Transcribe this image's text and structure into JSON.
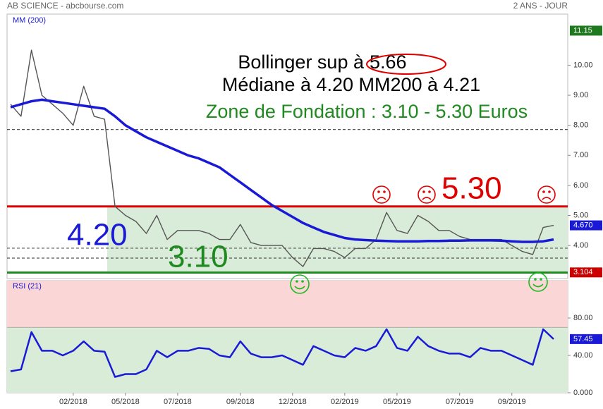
{
  "header": {
    "left": "AB SCIENCE - abcbourse.com",
    "right": "2 ANS - JOUR"
  },
  "chart_data": [
    {
      "type": "line",
      "series": [
        {
          "color": "#555555",
          "values": [
            8.7,
            8.3,
            10.5,
            9.0,
            8.7,
            8.4,
            8.0,
            9.3,
            8.3,
            8.2,
            5.3,
            5.0,
            4.8,
            4.4,
            5.0,
            4.2,
            4.5,
            4.5,
            4.5,
            4.4,
            4.2,
            4.2,
            4.7,
            4.1,
            4.0,
            4.0,
            4.0,
            3.6,
            3.3,
            3.9,
            3.9,
            3.8,
            3.6,
            3.9,
            3.9,
            4.2,
            5.1,
            4.5,
            4.4,
            5.0,
            4.8,
            4.5,
            4.5,
            4.3,
            4.2,
            4.2,
            4.2,
            4.2,
            4.0,
            3.8,
            3.7,
            4.6,
            4.67
          ]
        },
        {
          "name": "MM (200)",
          "color": "#1a1ad6",
          "values": [
            8.6,
            8.7,
            8.8,
            8.85,
            8.8,
            8.75,
            8.7,
            8.65,
            8.6,
            8.55,
            8.3,
            8.0,
            7.8,
            7.6,
            7.45,
            7.3,
            7.15,
            7.0,
            6.9,
            6.75,
            6.6,
            6.35,
            6.1,
            5.85,
            5.6,
            5.35,
            5.15,
            4.95,
            4.75,
            4.6,
            4.45,
            4.35,
            4.25,
            4.2,
            4.18,
            4.16,
            4.15,
            4.14,
            4.14,
            4.14,
            4.15,
            4.15,
            4.16,
            4.16,
            4.17,
            4.17,
            4.17,
            4.16,
            4.14,
            4.12,
            4.12,
            4.14,
            4.2
          ]
        }
      ],
      "ylim": [
        2.9,
        11.7
      ],
      "yticks": [
        {
          "value": 4,
          "label": "4.00"
        },
        {
          "value": 5,
          "label": "5.00"
        },
        {
          "value": 6,
          "label": "6.00"
        },
        {
          "value": 7,
          "label": "7.00"
        },
        {
          "value": 8,
          "label": "8.00"
        },
        {
          "value": 9,
          "label": "9.00"
        },
        {
          "value": 10,
          "label": "10.00"
        }
      ],
      "markers": [
        {
          "value": 11.15,
          "label": "11.15",
          "color": "#1f7a1f"
        },
        {
          "value": 4.67,
          "label": "4.670",
          "color": "#1a1ad6"
        },
        {
          "value": 3.104,
          "label": "3.104",
          "color": "#cc0000"
        }
      ],
      "zone": {
        "from": 3.1,
        "to": 5.3,
        "color": "#d9ecd9"
      },
      "levels": [
        {
          "value": 5.3,
          "color": "#e00000",
          "style": "solid"
        },
        {
          "value": 3.1,
          "color": "#1f8a1f",
          "style": "solid"
        },
        {
          "value": 7.86,
          "color": "#555555",
          "style": "dashed"
        },
        {
          "value": 3.91,
          "color": "#555555",
          "style": "dashed"
        },
        {
          "value": 3.58,
          "color": "#555555",
          "style": "dashed"
        }
      ],
      "annotations": {
        "bollinger": "Bollinger sup à",
        "bollinger_value": "5.66",
        "median": "Médiane à 4.20   MM200 à 4.21",
        "zone": "Zone de Fondation : 3.10 - 5.30 Euros",
        "big_420": "4.20",
        "big_310": "3.10",
        "big_530": "5.30"
      }
    },
    {
      "type": "line",
      "categories": [
        null,
        null,
        null,
        null,
        null,
        null,
        "02/2018",
        null,
        null,
        null,
        null,
        "05/2018",
        null,
        null,
        null,
        null,
        "07/2018",
        null,
        null,
        null,
        null,
        null,
        "09/2018",
        null,
        null,
        null,
        null,
        "12/2018",
        null,
        null,
        null,
        null,
        "02/2019",
        null,
        null,
        null,
        null,
        "05/2019",
        null,
        null,
        null,
        null,
        null,
        "07/2019",
        null,
        null,
        null,
        null,
        "09/2019",
        null,
        null,
        null,
        null
      ],
      "series": [
        {
          "name": "RSI (21)",
          "color": "#1a1ad6",
          "values": [
            23,
            25,
            65,
            45,
            45,
            40,
            45,
            55,
            45,
            44,
            17,
            20,
            20,
            25,
            45,
            38,
            45,
            45,
            48,
            47,
            40,
            38,
            55,
            42,
            38,
            38,
            40,
            35,
            30,
            50,
            45,
            40,
            38,
            48,
            45,
            50,
            68,
            48,
            45,
            60,
            50,
            45,
            42,
            42,
            38,
            48,
            45,
            45,
            40,
            35,
            30,
            68,
            57.45
          ]
        }
      ],
      "ylim": [
        0,
        120
      ],
      "yticks": [
        {
          "value": 0,
          "label": "0.000"
        },
        {
          "value": 40,
          "label": "40.00"
        },
        {
          "value": 80,
          "label": "80.00"
        }
      ],
      "markers": [
        {
          "value": 57.45,
          "label": "57.45",
          "color": "#1a1ad6"
        }
      ],
      "zones": [
        {
          "from": 70,
          "to": 120,
          "color": "#fbd6d6"
        },
        {
          "from": 0,
          "to": 70,
          "color": "#d8ecd8"
        }
      ]
    }
  ]
}
